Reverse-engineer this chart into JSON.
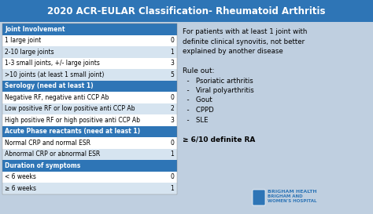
{
  "title": "2020 ACR-EULAR Classification- Rheumatoid Arthritis",
  "title_bg": "#2E75B6",
  "title_color": "#FFFFFF",
  "table_bg_header": "#2E75B6",
  "table_bg_row_odd": "#FFFFFF",
  "table_bg_row_even": "#D6E4F0",
  "table_text_color": "#000000",
  "table_header_text_color": "#FFFFFF",
  "main_bg": "#FFFFFF",
  "outer_bg": "#BFCFE0",
  "rows": [
    {
      "label": "Joint Involvement",
      "score": "",
      "is_header": true
    },
    {
      "label": "1 large joint",
      "score": "0",
      "is_header": false
    },
    {
      "label": "2-10 large joints",
      "score": "1",
      "is_header": false
    },
    {
      "label": "1-3 small joints, +/- large joints",
      "score": "3",
      "is_header": false
    },
    {
      "label": ">10 joints (at least 1 small joint)",
      "score": "5",
      "is_header": false
    },
    {
      "label": "Serology (need at least 1)",
      "score": "",
      "is_header": true
    },
    {
      "label": "Negative RF, negative anti CCP Ab",
      "score": "0",
      "is_header": false
    },
    {
      "label": "Low positive RF or low positive anti CCP Ab",
      "score": "2",
      "is_header": false
    },
    {
      "label": "High positive RF or high positive anti CCP Ab",
      "score": "3",
      "is_header": false
    },
    {
      "label": "Acute Phase reactants (need at least 1)",
      "score": "",
      "is_header": true
    },
    {
      "label": "Normal CRP and normal ESR",
      "score": "0",
      "is_header": false
    },
    {
      "label": "Abnormal CRP or abnormal ESR",
      "score": "1",
      "is_header": false
    },
    {
      "label": "Duration of symptoms",
      "score": "",
      "is_header": true
    },
    {
      "label": "< 6 weeks",
      "score": "0",
      "is_header": false
    },
    {
      "label": "≥ 6 weeks",
      "score": "1",
      "is_header": false
    }
  ],
  "right_text_lines": [
    "For patients with at least 1 joint with",
    "definite clinical synovitis, not better",
    "explained by another disease",
    "",
    "Rule out:",
    "  -   Psoriatic arthritis",
    "  -   Viral polyarthritis",
    "  -   Gout",
    "  -   CPPD",
    "  -   SLE",
    "",
    "≥ 6/10 definite RA"
  ],
  "italic_words_in_rows": [
    "or",
    "and"
  ],
  "footer_text": "BRIGHAM HEALTH\nBRIGHAM AND\nWOMEN'S HOSPITAL"
}
